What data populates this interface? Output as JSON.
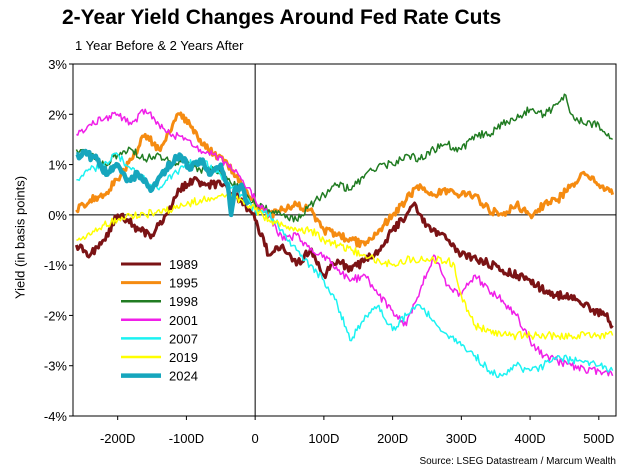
{
  "chart_data": {
    "type": "line",
    "title": "2-Year Yield Changes Around Fed Rate Cuts",
    "subtitle": "1 Year Before & 2 Years After",
    "ylabel": "Yield (in basis points)",
    "xlabel": "",
    "source": "Source: LSEG Datastream / Marcum Wealth",
    "xlim": [
      -265,
      525
    ],
    "ylim": [
      -4,
      3
    ],
    "xticks": [
      -200,
      -100,
      0,
      100,
      200,
      300,
      400,
      500
    ],
    "xtick_labels": [
      "-200D",
      "-100D",
      "0",
      "100D",
      "200D",
      "300D",
      "400D",
      "500D"
    ],
    "yticks": [
      3,
      2,
      1,
      0,
      -1,
      -2,
      -3,
      -4
    ],
    "ytick_labels": [
      "3%",
      "2%",
      "1%",
      "0%",
      "-1%",
      "-2%",
      "-3%",
      "-4%"
    ],
    "grid": false,
    "legend_position": "lower-left",
    "series": [
      {
        "name": "1989",
        "color": "#7B1315",
        "width": 3,
        "x": [
          -260,
          -240,
          -220,
          -200,
          -185,
          -170,
          -150,
          -130,
          -110,
          -90,
          -70,
          -50,
          -30,
          -10,
          0,
          20,
          40,
          60,
          80,
          100,
          120,
          140,
          160,
          180,
          200,
          220,
          230,
          250,
          280,
          300,
          330,
          360,
          400,
          430,
          460,
          490,
          510,
          520
        ],
        "y": [
          -0.6,
          -0.8,
          -0.5,
          0.0,
          -0.1,
          -0.3,
          -0.4,
          0.0,
          0.5,
          0.7,
          0.6,
          0.6,
          0.4,
          0.1,
          -0.1,
          -0.8,
          -0.6,
          -1.0,
          -0.7,
          -1.2,
          -0.9,
          -1.1,
          -0.9,
          -0.7,
          -0.3,
          0.0,
          0.2,
          -0.2,
          -0.5,
          -0.8,
          -0.9,
          -1.1,
          -1.3,
          -1.6,
          -1.6,
          -1.9,
          -2.0,
          -2.2
        ]
      },
      {
        "name": "1995",
        "color": "#F58B11",
        "width": 3,
        "x": [
          -260,
          -240,
          -220,
          -200,
          -180,
          -160,
          -140,
          -120,
          -110,
          -95,
          -80,
          -60,
          -40,
          -20,
          0,
          20,
          40,
          60,
          80,
          100,
          120,
          140,
          160,
          180,
          200,
          220,
          240,
          260,
          280,
          300,
          320,
          340,
          360,
          380,
          400,
          420,
          440,
          460,
          480,
          500,
          510,
          520
        ],
        "y": [
          0.1,
          0.3,
          0.4,
          0.7,
          1.1,
          1.6,
          1.3,
          1.8,
          2.0,
          1.8,
          1.5,
          1.2,
          1.0,
          0.6,
          0.2,
          0.0,
          0.1,
          0.2,
          0.1,
          -0.3,
          -0.4,
          -0.5,
          -0.6,
          -0.3,
          0.0,
          0.3,
          0.6,
          0.4,
          0.5,
          0.4,
          0.4,
          0.1,
          0.0,
          0.2,
          0.0,
          0.2,
          0.3,
          0.6,
          0.8,
          0.6,
          0.5,
          0.4
        ]
      },
      {
        "name": "1998",
        "color": "#217C22",
        "width": 1.5,
        "x": [
          -260,
          -240,
          -220,
          -200,
          -180,
          -160,
          -140,
          -120,
          -100,
          -80,
          -60,
          -40,
          -20,
          0,
          20,
          40,
          60,
          80,
          100,
          120,
          140,
          160,
          180,
          200,
          220,
          240,
          260,
          280,
          300,
          320,
          340,
          360,
          380,
          400,
          420,
          440,
          450,
          460,
          480,
          500,
          510,
          520
        ],
        "y": [
          1.3,
          1.2,
          1.0,
          1.2,
          1.3,
          1.1,
          1.2,
          1.0,
          1.1,
          0.9,
          0.9,
          0.7,
          0.5,
          0.2,
          0.1,
          0.0,
          -0.1,
          0.2,
          0.4,
          0.6,
          0.5,
          0.8,
          1.0,
          1.0,
          1.2,
          1.1,
          1.3,
          1.4,
          1.3,
          1.6,
          1.6,
          1.8,
          1.9,
          2.1,
          2.0,
          2.2,
          2.4,
          2.0,
          1.8,
          1.8,
          1.6,
          1.5
        ]
      },
      {
        "name": "2001",
        "color": "#F01FE8",
        "width": 1.5,
        "x": [
          -260,
          -240,
          -220,
          -200,
          -180,
          -160,
          -140,
          -120,
          -100,
          -80,
          -60,
          -40,
          -20,
          0,
          20,
          40,
          60,
          80,
          100,
          120,
          140,
          160,
          180,
          200,
          220,
          240,
          260,
          280,
          300,
          320,
          340,
          360,
          380,
          400,
          420,
          440,
          460,
          480,
          500,
          520
        ],
        "y": [
          1.6,
          1.8,
          1.9,
          2.0,
          1.8,
          2.1,
          1.8,
          1.6,
          1.5,
          1.3,
          1.2,
          1.0,
          0.7,
          0.3,
          0.0,
          -0.5,
          -0.4,
          -0.7,
          -0.8,
          -1.1,
          -1.3,
          -1.2,
          -1.6,
          -1.9,
          -2.2,
          -1.5,
          -0.8,
          -1.4,
          -1.6,
          -1.2,
          -1.5,
          -1.7,
          -2.0,
          -2.5,
          -2.8,
          -2.9,
          -3.0,
          -3.1,
          -3.1,
          -3.2
        ]
      },
      {
        "name": "2007",
        "color": "#1CF2F2",
        "width": 1.5,
        "x": [
          -260,
          -240,
          -220,
          -200,
          -180,
          -160,
          -140,
          -120,
          -100,
          -80,
          -60,
          -40,
          -20,
          0,
          20,
          40,
          60,
          80,
          100,
          120,
          140,
          160,
          180,
          200,
          220,
          240,
          260,
          280,
          300,
          320,
          340,
          360,
          380,
          400,
          420,
          440,
          460,
          480,
          500,
          520
        ],
        "y": [
          0.7,
          0.9,
          1.0,
          1.2,
          0.9,
          0.7,
          0.5,
          0.8,
          1.0,
          1.1,
          0.9,
          0.6,
          0.4,
          0.1,
          0.0,
          -0.3,
          -0.7,
          -1.0,
          -1.3,
          -1.8,
          -2.5,
          -2.0,
          -1.8,
          -2.3,
          -2.0,
          -1.8,
          -2.1,
          -2.4,
          -2.6,
          -2.8,
          -3.1,
          -3.2,
          -3.0,
          -3.1,
          -3.0,
          -2.8,
          -2.9,
          -2.9,
          -3.0,
          -3.1
        ]
      },
      {
        "name": "2019",
        "color": "#FFFF00",
        "width": 1.5,
        "x": [
          -260,
          -240,
          -220,
          -200,
          -180,
          -160,
          -140,
          -120,
          -100,
          -80,
          -60,
          -40,
          -20,
          0,
          20,
          40,
          60,
          80,
          100,
          120,
          140,
          160,
          180,
          200,
          220,
          240,
          260,
          280,
          290,
          300,
          320,
          340,
          360,
          380,
          400,
          420,
          440,
          460,
          480,
          500,
          520
        ],
        "y": [
          -0.5,
          -0.4,
          -0.2,
          -0.1,
          0.0,
          0.0,
          0.1,
          0.1,
          0.2,
          0.3,
          0.3,
          0.4,
          0.3,
          0.1,
          -0.1,
          -0.2,
          -0.3,
          -0.3,
          -0.5,
          -0.6,
          -0.7,
          -0.8,
          -0.9,
          -1.0,
          -0.9,
          -0.9,
          -0.9,
          -0.9,
          -1.0,
          -1.6,
          -2.2,
          -2.3,
          -2.4,
          -2.4,
          -2.4,
          -2.4,
          -2.4,
          -2.4,
          -2.4,
          -2.4,
          -2.4
        ]
      },
      {
        "name": "2024",
        "color": "#16A6BD",
        "width": 4.5,
        "x": [
          -260,
          -245,
          -230,
          -215,
          -200,
          -185,
          -170,
          -150,
          -130,
          -110,
          -95,
          -80,
          -65,
          -50,
          -40,
          -35,
          -30,
          -20,
          -10
        ],
        "y": [
          1.2,
          1.2,
          1.1,
          0.8,
          1.0,
          0.7,
          0.8,
          0.5,
          0.9,
          1.2,
          0.9,
          1.1,
          0.8,
          1.0,
          0.6,
          0.0,
          0.5,
          0.6,
          0.2
        ]
      }
    ]
  }
}
